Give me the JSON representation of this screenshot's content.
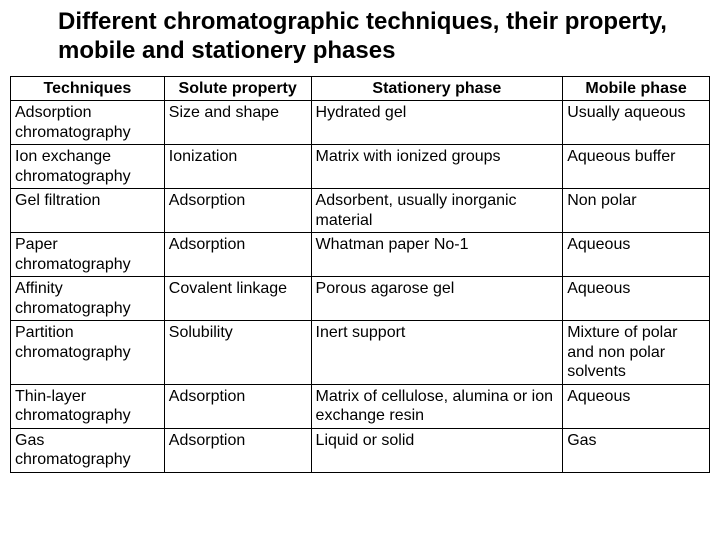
{
  "title": "Different chromatographic techniques, their property, mobile and stationery phases",
  "colors": {
    "text": "#000000",
    "background": "#ffffff",
    "border": "#000000"
  },
  "typography": {
    "title_fontsize": 24,
    "title_weight": 700,
    "cell_fontsize": 16,
    "header_weight": 700,
    "font_family": "Arial"
  },
  "table": {
    "type": "table",
    "column_widths_pct": [
      22,
      21,
      36,
      21
    ],
    "columns": [
      "Techniques",
      "Solute property",
      "Stationery phase",
      "Mobile phase"
    ],
    "rows": [
      [
        "Adsorption chromatography",
        "Size and shape",
        "Hydrated gel",
        "Usually aqueous"
      ],
      [
        "Ion exchange chromatography",
        "Ionization",
        "Matrix with ionized groups",
        "Aqueous buffer"
      ],
      [
        "Gel filtration",
        "Adsorption",
        "Adsorbent, usually inorganic material",
        "Non polar"
      ],
      [
        "Paper chromatography",
        "Adsorption",
        "Whatman  paper No-1",
        "Aqueous"
      ],
      [
        "Affinity chromatography",
        "Covalent linkage",
        "Porous agarose gel",
        "Aqueous"
      ],
      [
        "Partition chromatography",
        "Solubility",
        "Inert support",
        "Mixture of polar and non polar solvents"
      ],
      [
        "Thin-layer chromatography",
        "Adsorption",
        "Matrix of cellulose, alumina or ion exchange resin",
        "Aqueous"
      ],
      [
        "Gas chromatography",
        "Adsorption",
        "Liquid or solid",
        "Gas"
      ]
    ]
  }
}
